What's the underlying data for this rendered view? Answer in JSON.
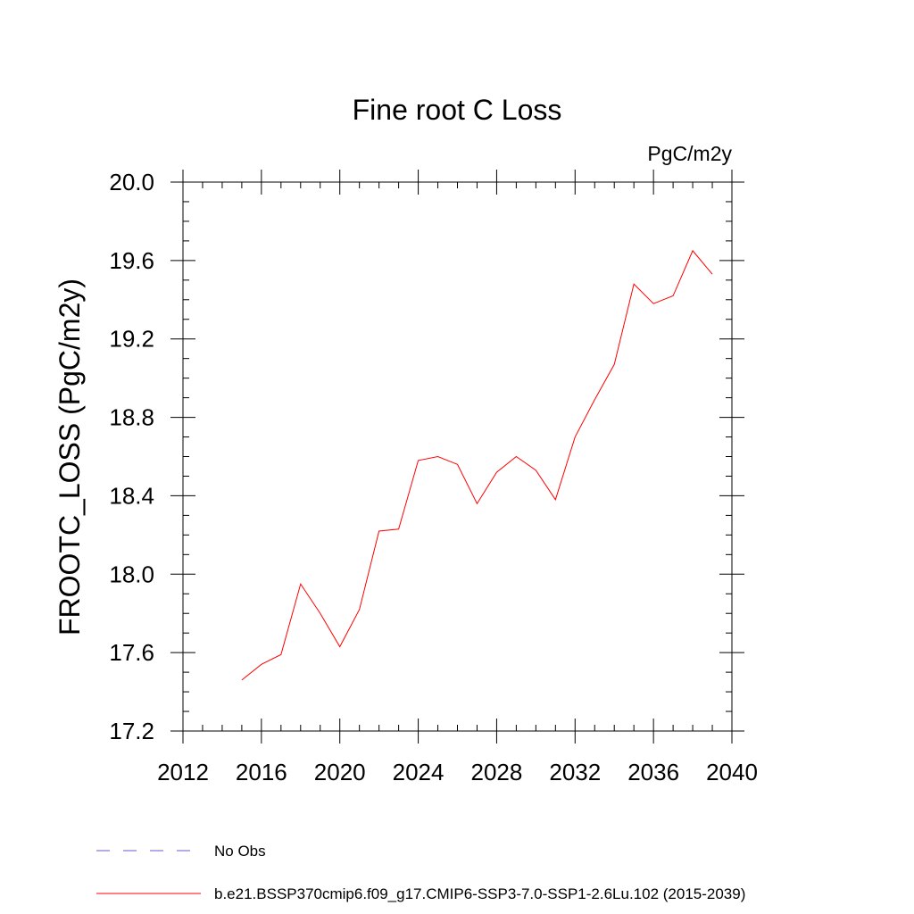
{
  "chart_data": {
    "type": "line",
    "title": "Fine root C Loss",
    "units": "PgC/m2y",
    "ylabel": "FROOTC_LOSS  (PgC/m2y)",
    "xlabel": "",
    "xlim": [
      2012,
      2040
    ],
    "ylim": [
      17.2,
      20.0
    ],
    "x_ticks": [
      2012,
      2016,
      2020,
      2024,
      2028,
      2032,
      2036,
      2040
    ],
    "y_ticks": [
      17.2,
      17.6,
      18.0,
      18.4,
      18.8,
      19.2,
      19.6,
      20.0
    ],
    "legend_placement": "bottom",
    "series": [
      {
        "name": "b.e21.BSSP370cmip6.f09_g17.CMIP6-SSP3-7.0-SSP1-2.6Lu.102 (2015-2039)",
        "color": "#ff0000",
        "style": "solid",
        "x": [
          2015,
          2016,
          2017,
          2018,
          2019,
          2020,
          2021,
          2022,
          2023,
          2024,
          2025,
          2026,
          2027,
          2028,
          2029,
          2030,
          2031,
          2032,
          2033,
          2034,
          2035,
          2036,
          2037,
          2038,
          2039
        ],
        "y": [
          17.46,
          17.54,
          17.59,
          17.95,
          17.8,
          17.63,
          17.82,
          18.22,
          18.23,
          18.58,
          18.6,
          18.56,
          18.36,
          18.52,
          18.6,
          18.53,
          18.38,
          18.7,
          18.89,
          19.07,
          19.48,
          19.38,
          19.42,
          19.65,
          19.53
        ]
      }
    ],
    "legend": [
      {
        "label": "No Obs",
        "color": "#6a5acd",
        "style": "dashed"
      },
      {
        "label": "b.e21.BSSP370cmip6.f09_g17.CMIP6-SSP3-7.0-SSP1-2.6Lu.102 (2015-2039)",
        "color": "#ff0000",
        "style": "solid"
      }
    ]
  }
}
